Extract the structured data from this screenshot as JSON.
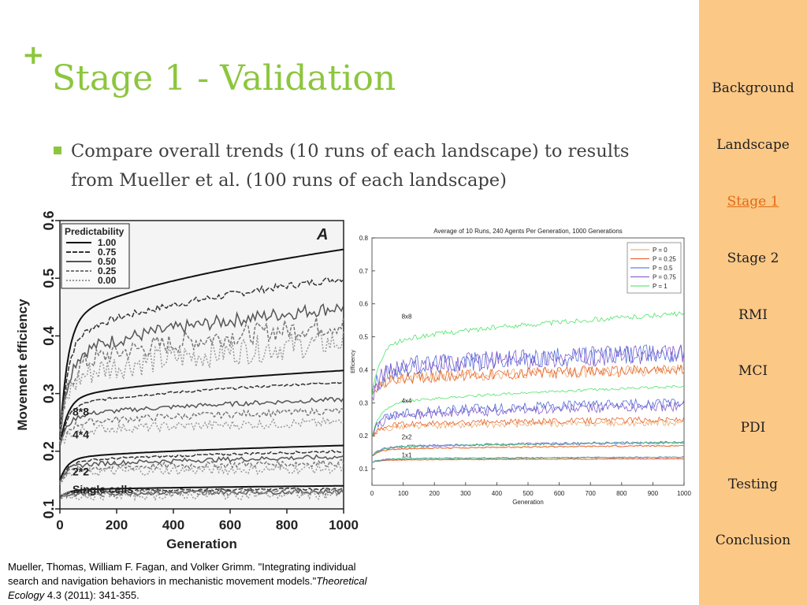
{
  "slide": {
    "plus": "+",
    "title": "Stage 1 - Validation",
    "bullet": "Compare overall trends (10 runs of each landscape) to results from Mueller et al. (100 runs of each landscape)"
  },
  "sidebar": {
    "items": [
      {
        "label": "Background",
        "active": false
      },
      {
        "label": "Landscape",
        "active": false
      },
      {
        "label": "Stage 1",
        "active": true
      },
      {
        "label": "Stage 2",
        "active": false
      },
      {
        "label": "RMI",
        "active": false
      },
      {
        "label": "MCI",
        "active": false
      },
      {
        "label": "PDI",
        "active": false
      },
      {
        "label": "Testing",
        "active": false
      },
      {
        "label": "Conclusion",
        "active": false
      }
    ]
  },
  "citation": {
    "part1": "Mueller, Thomas, William F. Fagan, and Volker Grimm. \"Integrating individual search and navigation behaviors in mechanistic movement models.\"",
    "journal": "Theoretical Ecology",
    "part2": " 4.3 (2011): 341-355."
  },
  "colors": {
    "accent_green": "#8cc63e",
    "sidebar_bg": "#fcc886",
    "active_nav": "#e26a12",
    "body_text": "#404040"
  },
  "chart_data": [
    {
      "type": "line",
      "panel_label": "A",
      "xlabel": "Generation",
      "ylabel": "Movement efficiency",
      "xlim": [
        0,
        1000
      ],
      "ylim": [
        0.1,
        0.6
      ],
      "x_ticks": [
        "0",
        "200",
        "400",
        "600",
        "800",
        "1000"
      ],
      "y_ticks": [
        "0.1",
        "0.2",
        "0.3",
        "0.4",
        "0.5",
        "0.6"
      ],
      "legend_title": "Predictability",
      "legend_position": "top-left",
      "series": [
        {
          "name": "1.00"
        },
        {
          "name": "0.75"
        },
        {
          "name": "0.50"
        },
        {
          "name": "0.25"
        },
        {
          "name": "0.00"
        }
      ],
      "group_labels": [
        "8*8",
        "4*4",
        "2*2",
        "Single cells"
      ],
      "groups": [
        {
          "name": "8*8",
          "start": 0.22,
          "end_values": [
            0.55,
            0.5,
            0.45,
            0.42,
            0.39
          ]
        },
        {
          "name": "4*4",
          "start": 0.21,
          "end_values": [
            0.34,
            0.32,
            0.29,
            0.27,
            0.25
          ]
        },
        {
          "name": "2*2",
          "start": 0.15,
          "end_values": [
            0.21,
            0.2,
            0.19,
            0.18,
            0.17
          ]
        },
        {
          "name": "Single cells",
          "start": 0.12,
          "end_values": [
            0.14,
            0.135,
            0.13,
            0.13,
            0.125
          ]
        }
      ]
    },
    {
      "type": "line",
      "title": "Average of 10 Runs, 240 Agents Per Generation, 1000 Generations",
      "xlabel": "Generation",
      "ylabel": "Efficiency",
      "xlim": [
        0,
        1000
      ],
      "ylim": [
        0.05,
        0.8
      ],
      "x_ticks": [
        "0",
        "100",
        "200",
        "300",
        "400",
        "500",
        "600",
        "700",
        "800",
        "900",
        "1000"
      ],
      "y_ticks": [
        "0.1",
        "0.2",
        "0.3",
        "0.4",
        "0.5",
        "0.6",
        "0.7",
        "0.8"
      ],
      "legend_position": "top-right",
      "series": [
        {
          "name": "P = 0",
          "color": "#e8a25e"
        },
        {
          "name": "P = 0.25",
          "color": "#e4541b"
        },
        {
          "name": "P = 0.5",
          "color": "#3f5fd8"
        },
        {
          "name": "P = 0.75",
          "color": "#7a4fc4"
        },
        {
          "name": "P = 1",
          "color": "#3ee05a"
        }
      ],
      "group_labels": [
        "8x8",
        "4x4",
        "2x2",
        "1x1"
      ],
      "groups": [
        {
          "name": "8x8",
          "start": 0.32,
          "end_values": [
            0.4,
            0.4,
            0.45,
            0.45,
            0.57
          ]
        },
        {
          "name": "4x4",
          "start": 0.2,
          "end_values": [
            0.24,
            0.25,
            0.3,
            0.29,
            0.35
          ]
        },
        {
          "name": "2x2",
          "start": 0.14,
          "end_values": [
            0.17,
            0.17,
            0.18,
            0.18,
            0.18
          ]
        },
        {
          "name": "1x1",
          "start": 0.12,
          "end_values": [
            0.13,
            0.13,
            0.135,
            0.135,
            0.135
          ]
        }
      ]
    }
  ]
}
